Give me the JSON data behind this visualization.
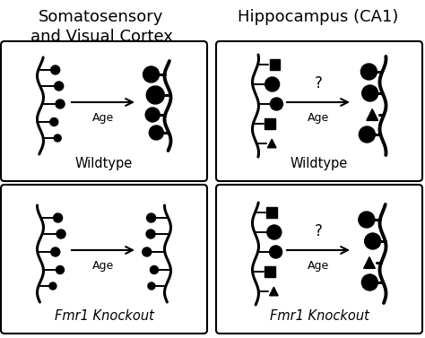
{
  "title_left": "Somatosensory\nand Visual Cortex",
  "title_right": "Hippocampus (CA1)",
  "label_wt": "Wildtype",
  "label_ko": "Fmr1 Knockout",
  "arrow_label": "Age",
  "question_mark": "?",
  "bg_color": "#ffffff",
  "text_color": "#000000",
  "title_fontsize": 13,
  "label_fontsize": 10.5,
  "arrow_fontsize": 9,
  "fig_w": 4.74,
  "fig_h": 3.77,
  "dpi": 100
}
